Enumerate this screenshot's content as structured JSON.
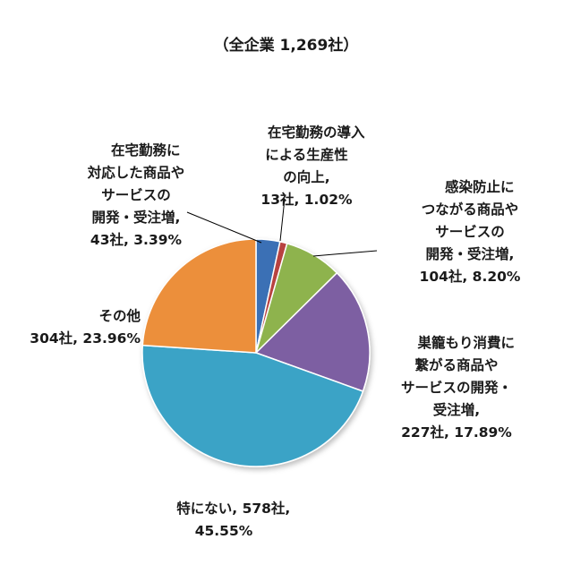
{
  "chart_data": {
    "type": "pie",
    "title": "（全企業 1,269社）",
    "unit": "社",
    "total": 1269,
    "slices": [
      {
        "label": "在宅勤務に対応した商品やサービスの開発・受注増",
        "value": 43,
        "percent": 3.39,
        "color": "#3a6fb5",
        "text": {
          "name": "在宅勤務に\n対応した商品や\nサービスの\n開発・受注増,",
          "value": "43社, 3.39%"
        }
      },
      {
        "label": "在宅勤務の導入による生産性の向上",
        "value": 13,
        "percent": 1.02,
        "color": "#b84240",
        "text": {
          "name": "在宅勤務の導入\nによる生産性\nの向上,",
          "value": "13社, 1.02%"
        }
      },
      {
        "label": "感染防止につながる商品やサービスの開発・受注増",
        "value": 104,
        "percent": 8.2,
        "color": "#8eb34e",
        "text": {
          "name": "感染防止に\nつながる商品や\nサービスの\n開発・受注増,",
          "value": "104社, 8.20%"
        }
      },
      {
        "label": "巣籠もり消費に繋がる商品やサービスの開発・受注増",
        "value": 227,
        "percent": 17.89,
        "color": "#7d5ea2",
        "text": {
          "name": "巣籠もり消費に\n繋がる商品や\nサービスの開発・\n受注増,",
          "value": "227社, 17.89%"
        }
      },
      {
        "label": "特にない",
        "value": 578,
        "percent": 45.55,
        "color": "#3ba3c6",
        "text": {
          "name": "特にない, 578社,",
          "value": "45.55%"
        }
      },
      {
        "label": "その他",
        "value": 304,
        "percent": 23.96,
        "color": "#ec8f3a",
        "text": {
          "name": "その他",
          "value": "304社, 23.96%"
        }
      }
    ]
  }
}
